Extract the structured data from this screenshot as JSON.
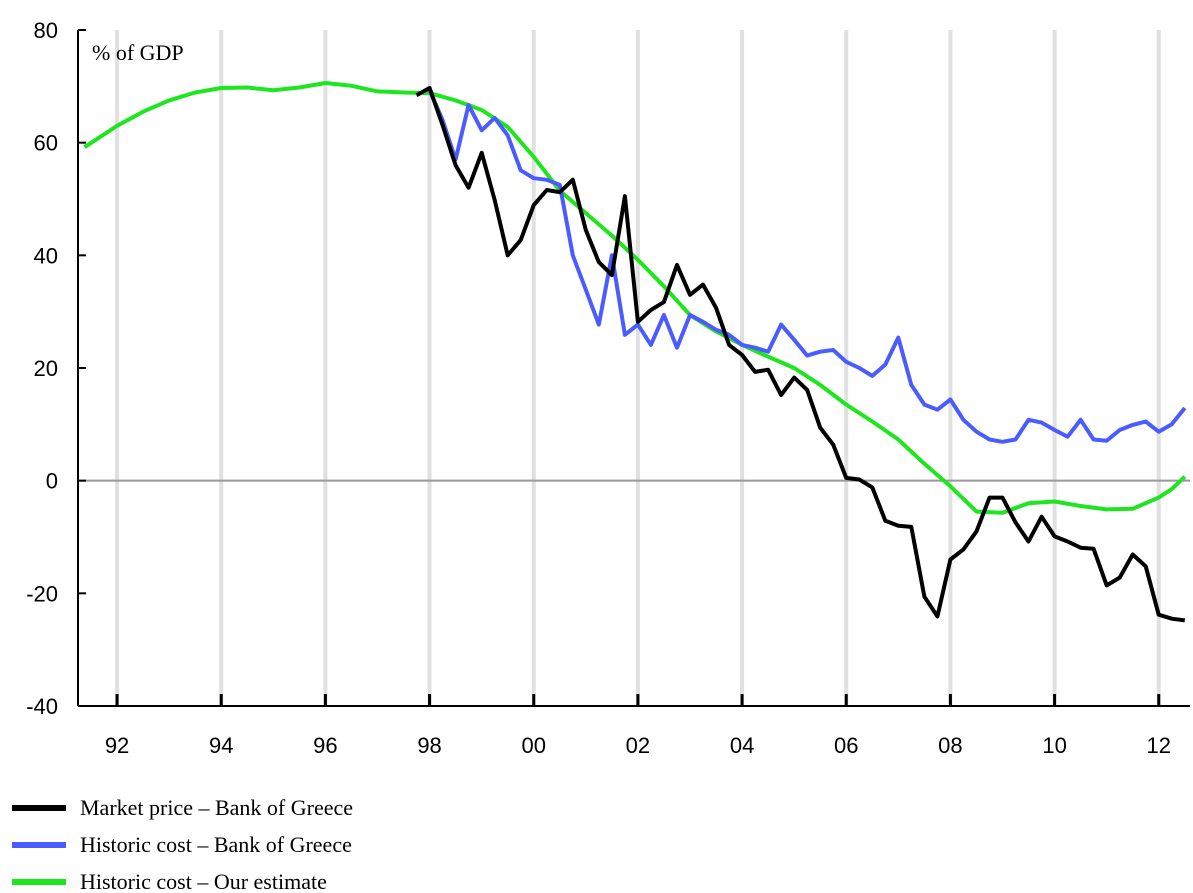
{
  "chart_data": {
    "type": "line",
    "y_label": "% of GDP",
    "xlim": [
      1991.25,
      2012.6
    ],
    "xticks": [
      {
        "value": 1992,
        "label": "92"
      },
      {
        "value": 1994,
        "label": "94"
      },
      {
        "value": 1996,
        "label": "96"
      },
      {
        "value": 1998,
        "label": "98"
      },
      {
        "value": 2000,
        "label": "00"
      },
      {
        "value": 2002,
        "label": "02"
      },
      {
        "value": 2004,
        "label": "04"
      },
      {
        "value": 2006,
        "label": "06"
      },
      {
        "value": 2008,
        "label": "08"
      },
      {
        "value": 2010,
        "label": "10"
      },
      {
        "value": 2012,
        "label": "12"
      }
    ],
    "ylim": [
      -40,
      80
    ],
    "yticks": [
      -40,
      -20,
      0,
      20,
      40,
      60,
      80
    ],
    "grid": true,
    "legend": "bottom-left",
    "series": [
      {
        "name": "Market price – Bank of Greece",
        "color": "#000000",
        "x": [
          1997.75,
          1998,
          1998.25,
          1998.5,
          1998.75,
          1999,
          1999.25,
          1999.5,
          1999.75,
          2000,
          2000.25,
          2000.5,
          2000.75,
          2001,
          2001.25,
          2001.5,
          2001.75,
          2002,
          2002.25,
          2002.5,
          2002.75,
          2003,
          2003.25,
          2003.5,
          2003.75,
          2004,
          2004.25,
          2004.5,
          2004.75,
          2005,
          2005.25,
          2005.5,
          2005.75,
          2006,
          2006.25,
          2006.5,
          2006.75,
          2007,
          2007.25,
          2007.5,
          2007.75,
          2008,
          2008.25,
          2008.5,
          2008.75,
          2009,
          2009.25,
          2009.5,
          2009.75,
          2010,
          2010.25,
          2010.5,
          2010.75,
          2011,
          2011.25,
          2011.5,
          2011.75,
          2012,
          2012.25,
          2012.5
        ],
        "values": [
          68.4,
          69.7,
          63.1,
          56,
          52,
          58.2,
          49.8,
          40,
          42.7,
          48.9,
          51.6,
          51.2,
          53.4,
          44.5,
          38.8,
          36.5,
          50.5,
          28.2,
          30.3,
          31.7,
          38.3,
          33,
          34.8,
          30.7,
          24.1,
          22.3,
          19.3,
          19.7,
          15.2,
          18.3,
          16.1,
          9.4,
          6.4,
          0.5,
          0.2,
          -1.2,
          -7.1,
          -8,
          -8.2,
          -20.6,
          -24.1,
          -14,
          -12.2,
          -9,
          -3,
          -3,
          -7.4,
          -10.8,
          -6.4,
          -9.9,
          -10.8,
          -11.9,
          -12.1,
          -18.6,
          -17.2,
          -13.1,
          -15.2,
          -23.8,
          -24.5,
          -24.8
        ]
      },
      {
        "name": "Historic cost – Bank of Greece",
        "color": "#4a5cff",
        "x": [
          1998,
          1998.25,
          1998.5,
          1998.75,
          1999,
          1999.25,
          1999.5,
          1999.75,
          2000,
          2000.25,
          2000.5,
          2000.75,
          2001,
          2001.25,
          2001.5,
          2001.75,
          2002,
          2002.25,
          2002.5,
          2002.75,
          2003,
          2003.25,
          2003.5,
          2003.75,
          2004,
          2004.25,
          2004.5,
          2004.75,
          2005,
          2005.25,
          2005.5,
          2005.75,
          2006,
          2006.25,
          2006.5,
          2006.75,
          2007,
          2007.25,
          2007.5,
          2007.75,
          2008,
          2008.25,
          2008.5,
          2008.75,
          2009,
          2009.25,
          2009.5,
          2009.75,
          2010,
          2010.25,
          2010.5,
          2010.75,
          2011,
          2011.25,
          2011.5,
          2011.75,
          2012,
          2012.25,
          2012.5
        ],
        "values": [
          69.3,
          64,
          57,
          66.7,
          62.2,
          64.4,
          61.3,
          55.1,
          53.7,
          53.4,
          52.5,
          40,
          33.9,
          27.7,
          40,
          25.9,
          27.7,
          24.1,
          29.4,
          23.6,
          29.4,
          28.2,
          26.8,
          25.9,
          24.1,
          23.6,
          22.9,
          27.7,
          25,
          22.2,
          22.9,
          23.2,
          21.1,
          20,
          18.6,
          20.6,
          25.4,
          17,
          13.5,
          12.6,
          14.4,
          10.8,
          8.7,
          7.3,
          6.9,
          7.3,
          10.8,
          10.3,
          9,
          7.8,
          10.8,
          7.3,
          7.1,
          9,
          9.9,
          10.5,
          8.7,
          10,
          12.9
        ]
      },
      {
        "name": "Historic cost – Our estimate",
        "color": "#1ee61e",
        "x": [
          1991.375,
          1992,
          1992.5,
          1993,
          1993.5,
          1994,
          1994.5,
          1995,
          1995.5,
          1996,
          1996.5,
          1997,
          1997.5,
          1998,
          1998.5,
          1999,
          1999.5,
          2000,
          2000.5,
          2001,
          2001.5,
          2002,
          2002.5,
          2003,
          2003.5,
          2004,
          2004.5,
          2005,
          2005.5,
          2006,
          2006.5,
          2007,
          2007.5,
          2008,
          2008.5,
          2009,
          2009.5,
          2010,
          2010.5,
          2011,
          2011.5,
          2012,
          2012.25,
          2012.5
        ],
        "values": [
          59.2,
          63,
          65.5,
          67.5,
          68.9,
          69.7,
          69.8,
          69.3,
          69.8,
          70.6,
          70.1,
          69.1,
          68.9,
          68.8,
          67.5,
          65.8,
          62.8,
          57.5,
          51.5,
          47.5,
          43.5,
          39.2,
          34.5,
          29.4,
          26.5,
          24.1,
          22,
          20,
          17,
          13.5,
          10.5,
          7.3,
          3,
          -1,
          -5.5,
          -5.7,
          -4,
          -3.7,
          -4.5,
          -5.1,
          -5,
          -3,
          -1.5,
          0.7
        ]
      }
    ]
  }
}
